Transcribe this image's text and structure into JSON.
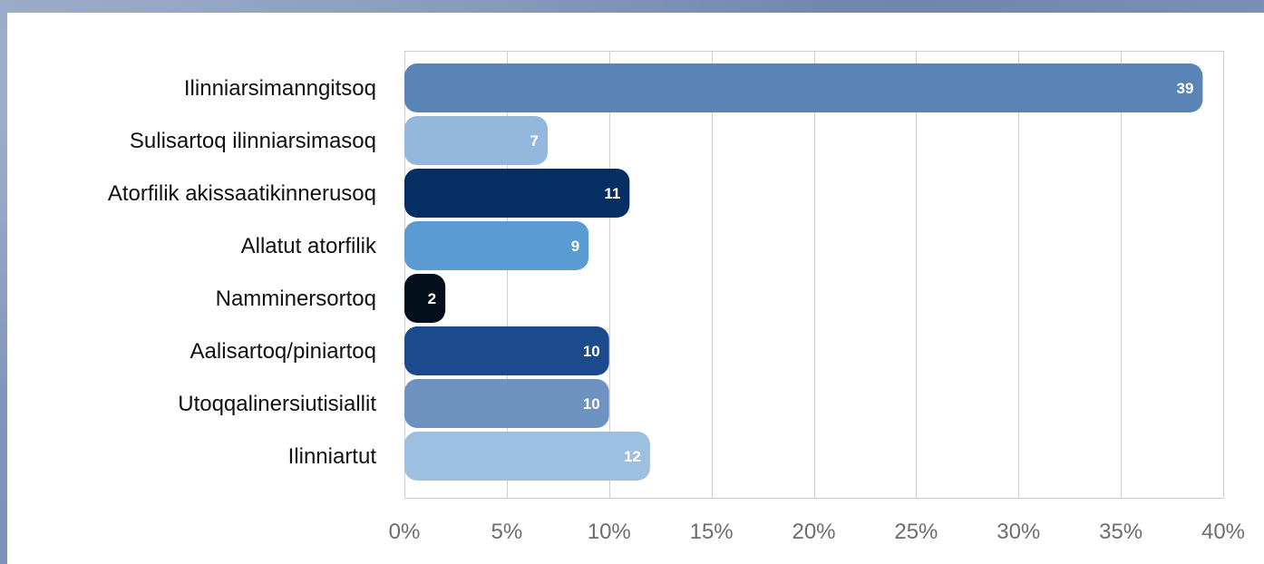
{
  "chart_data": {
    "type": "bar",
    "orientation": "horizontal",
    "title": "",
    "xlabel": "",
    "ylabel": "",
    "xlim": [
      0,
      40
    ],
    "x_ticks": [
      "0%",
      "5%",
      "10%",
      "15%",
      "20%",
      "25%",
      "30%",
      "35%",
      "40%"
    ],
    "grid": true,
    "legend": "none",
    "categories": [
      "Ilinniarsimanngitsoq",
      "Sulisartoq ilinniarsimasoq",
      "Atorfilik akissaatikinnerusoq",
      "Allatut atorfilik",
      "Namminersortoq",
      "Aalisartoq/piniartoq",
      "Utoqqalinersiutisiallit",
      "Ilinniartut"
    ],
    "values": [
      39,
      7,
      11,
      9,
      2,
      10,
      10,
      12
    ],
    "data_labels": [
      "39",
      "7",
      "11",
      "9",
      "2",
      "10",
      "10",
      "12"
    ],
    "colors": [
      "#5b84b6",
      "#94b8dd",
      "#052f63",
      "#5b9bd4",
      "#03101c",
      "#1b4b8d",
      "#6f93c1",
      "#9ec0e0"
    ]
  }
}
